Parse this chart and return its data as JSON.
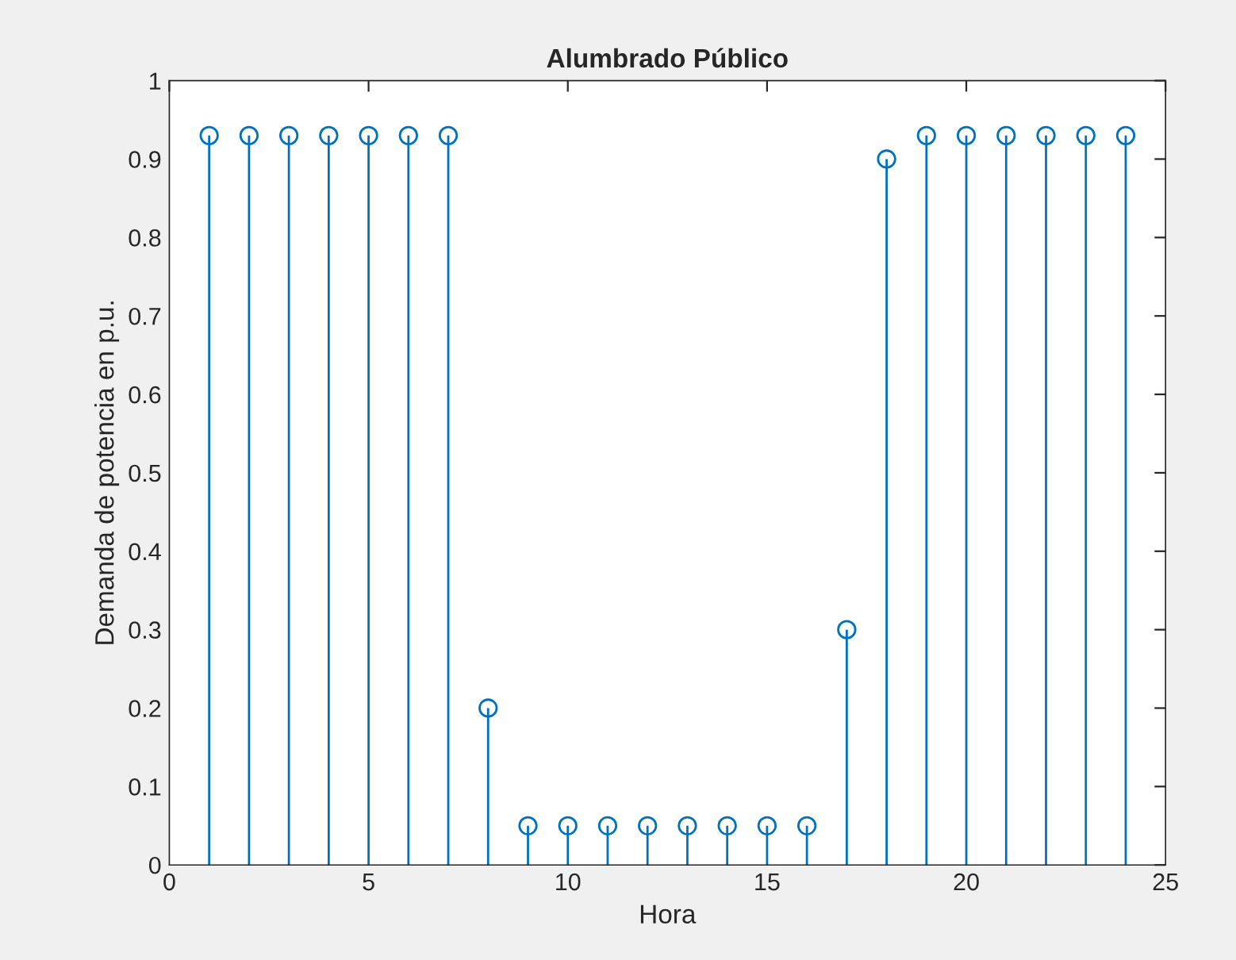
{
  "chart_data": {
    "type": "lollipop",
    "title": "Alumbrado Público",
    "xlabel": "Hora",
    "ylabel": "Demanda de potencia en p.u.",
    "x": [
      1,
      2,
      3,
      4,
      5,
      6,
      7,
      8,
      9,
      10,
      11,
      12,
      13,
      14,
      15,
      16,
      17,
      18,
      19,
      20,
      21,
      22,
      23,
      24
    ],
    "values": [
      0.93,
      0.93,
      0.93,
      0.93,
      0.93,
      0.93,
      0.93,
      0.2,
      0.05,
      0.05,
      0.05,
      0.05,
      0.05,
      0.05,
      0.05,
      0.05,
      0.3,
      0.9,
      0.93,
      0.93,
      0.93,
      0.93,
      0.93,
      0.93
    ],
    "color": "#0072bd",
    "marker": "circle",
    "xlim": [
      0,
      25
    ],
    "xticks": [
      0,
      5,
      10,
      15,
      20,
      25
    ],
    "ylim": [
      0,
      1
    ],
    "yticks": [
      0,
      0.1,
      0.2,
      0.3,
      0.4,
      0.5,
      0.6,
      0.7,
      0.8,
      0.9,
      1
    ]
  }
}
